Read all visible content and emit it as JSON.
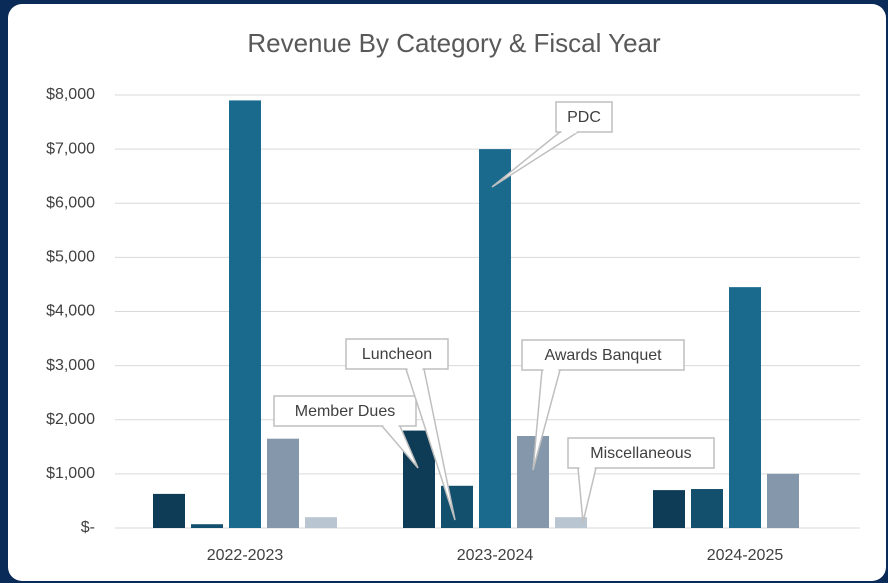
{
  "chart_data": {
    "type": "bar",
    "title": "Revenue By Category & Fiscal Year",
    "categories": [
      "2022-2023",
      "2023-2024",
      "2024-2025"
    ],
    "series": [
      {
        "name": "Member Dues",
        "color": "#0e3b55",
        "values": [
          630,
          1800,
          700
        ]
      },
      {
        "name": "Luncheon",
        "color": "#13506e",
        "values": [
          70,
          780,
          720
        ]
      },
      {
        "name": "PDC",
        "color": "#1a6a8e",
        "values": [
          7900,
          7000,
          4450
        ]
      },
      {
        "name": "Awards Banquet",
        "color": "#8597aa",
        "values": [
          1650,
          1700,
          1000
        ]
      },
      {
        "name": "Miscellaneous",
        "color": "#b9c5d1",
        "values": [
          200,
          200,
          null
        ]
      }
    ],
    "ylim": [
      0,
      8000
    ],
    "yticks": [
      {
        "value": 0,
        "label": "$-"
      },
      {
        "value": 1000,
        "label": "$1,000"
      },
      {
        "value": 2000,
        "label": "$2,000"
      },
      {
        "value": 3000,
        "label": "$3,000"
      },
      {
        "value": 4000,
        "label": "$4,000"
      },
      {
        "value": 5000,
        "label": "$5,000"
      },
      {
        "value": 6000,
        "label": "$6,000"
      },
      {
        "value": 7000,
        "label": "$7,000"
      },
      {
        "value": 8000,
        "label": "$8,000"
      }
    ],
    "grid": true
  }
}
